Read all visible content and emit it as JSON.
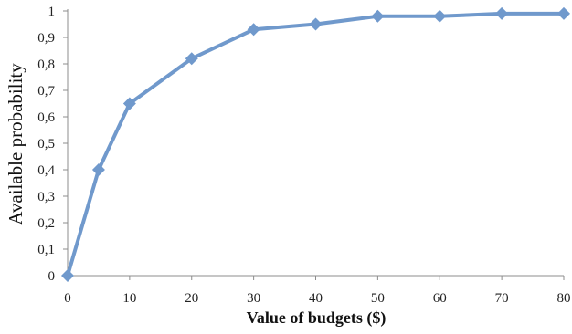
{
  "chart_data": {
    "type": "line",
    "title": "",
    "xlabel": "Value of budgets ($)",
    "ylabel": "Available probability",
    "x_ticks": [
      "0",
      "10",
      "20",
      "30",
      "40",
      "50",
      "60",
      "70",
      "80"
    ],
    "y_ticks": [
      "0",
      "0,1",
      "0,2",
      "0,3",
      "0,4",
      "0,5",
      "0,6",
      "0,7",
      "0,8",
      "0,9",
      "1"
    ],
    "xlim": [
      0,
      80
    ],
    "ylim": [
      0,
      1
    ],
    "grid": false,
    "legend": "none",
    "series": [
      {
        "color": "#7099cc",
        "marker": "diamond",
        "x": [
          0,
          5,
          10,
          20,
          30,
          40,
          50,
          60,
          70,
          80
        ],
        "y": [
          0,
          0.4,
          0.65,
          0.82,
          0.93,
          0.95,
          0.98,
          0.98,
          0.99,
          0.99
        ]
      }
    ]
  }
}
